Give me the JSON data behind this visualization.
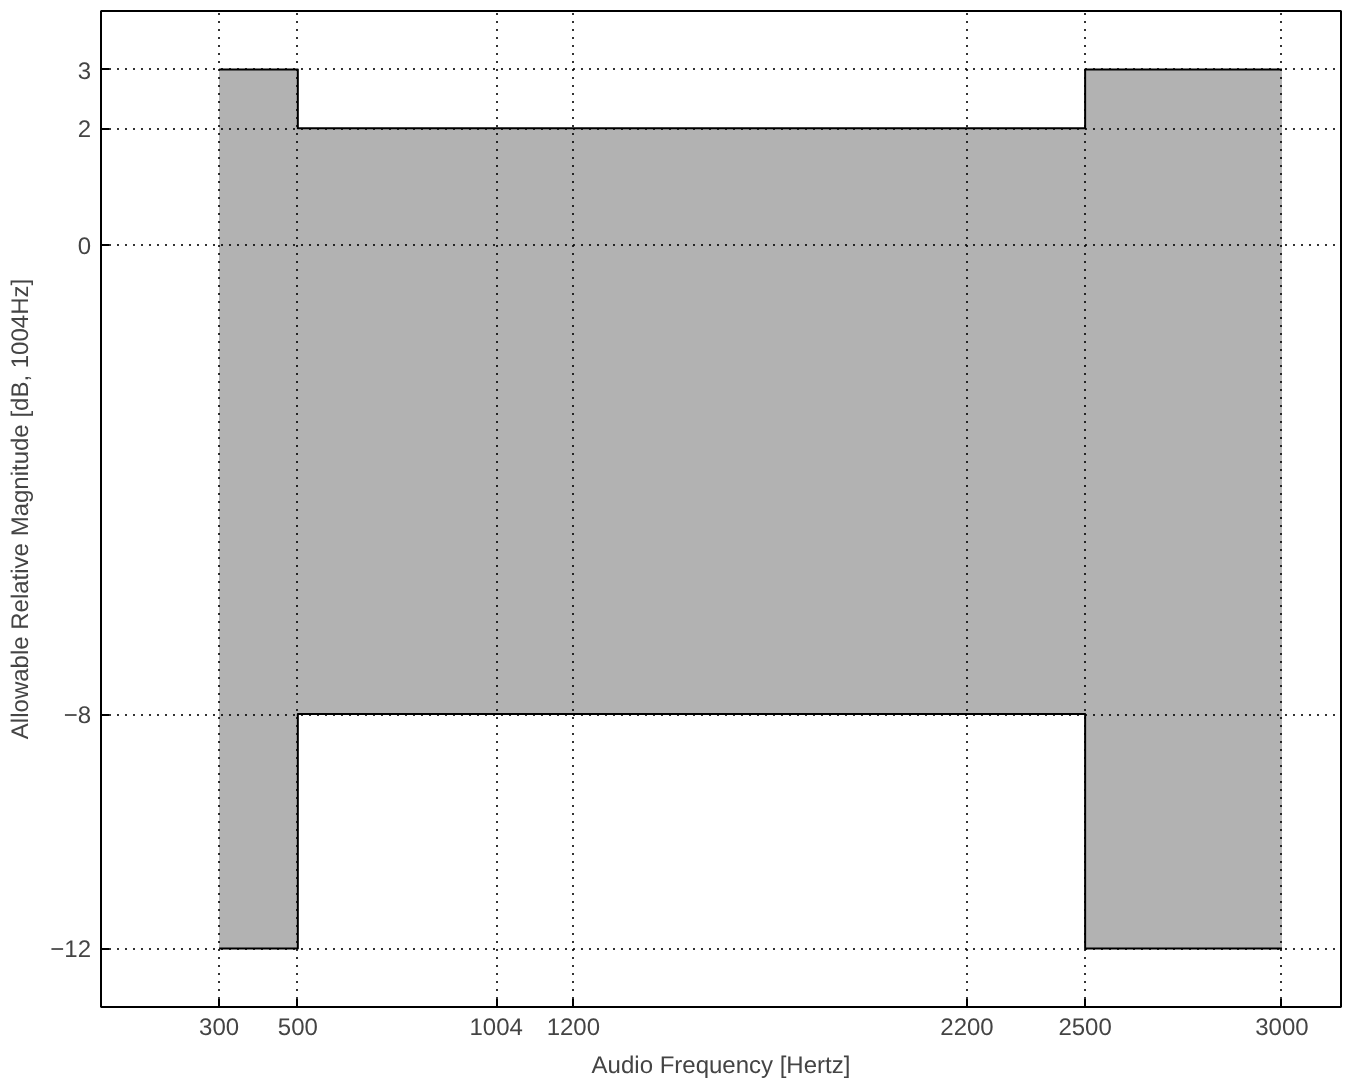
{
  "chart_data": {
    "type": "line",
    "xlabel": "Audio Frequency [Hertz]",
    "ylabel": "Allowable Relative Magnitude [dB, 1004Hz]",
    "x": [
      300,
      500,
      500,
      2500,
      2500,
      3000
    ],
    "series": [
      {
        "color": "#000000",
        "values": [
          3,
          3,
          2,
          2,
          3,
          3
        ],
        "lower": [
          -12,
          -12,
          -8,
          -8,
          -12,
          -12
        ],
        "upper": [
          3,
          3,
          2,
          2,
          3,
          3
        ]
      },
      {
        "color": "#000000",
        "values": [
          -12,
          -12,
          -8,
          -8,
          -12,
          -12
        ]
      }
    ],
    "xlim": [
      0,
      3150
    ],
    "ylim": [
      -13,
      4
    ],
    "xticks": [
      300,
      500,
      1004,
      1200,
      2200,
      2500,
      3000
    ],
    "yticks": [
      -12,
      -8,
      0,
      2,
      3
    ],
    "grid": true
  }
}
